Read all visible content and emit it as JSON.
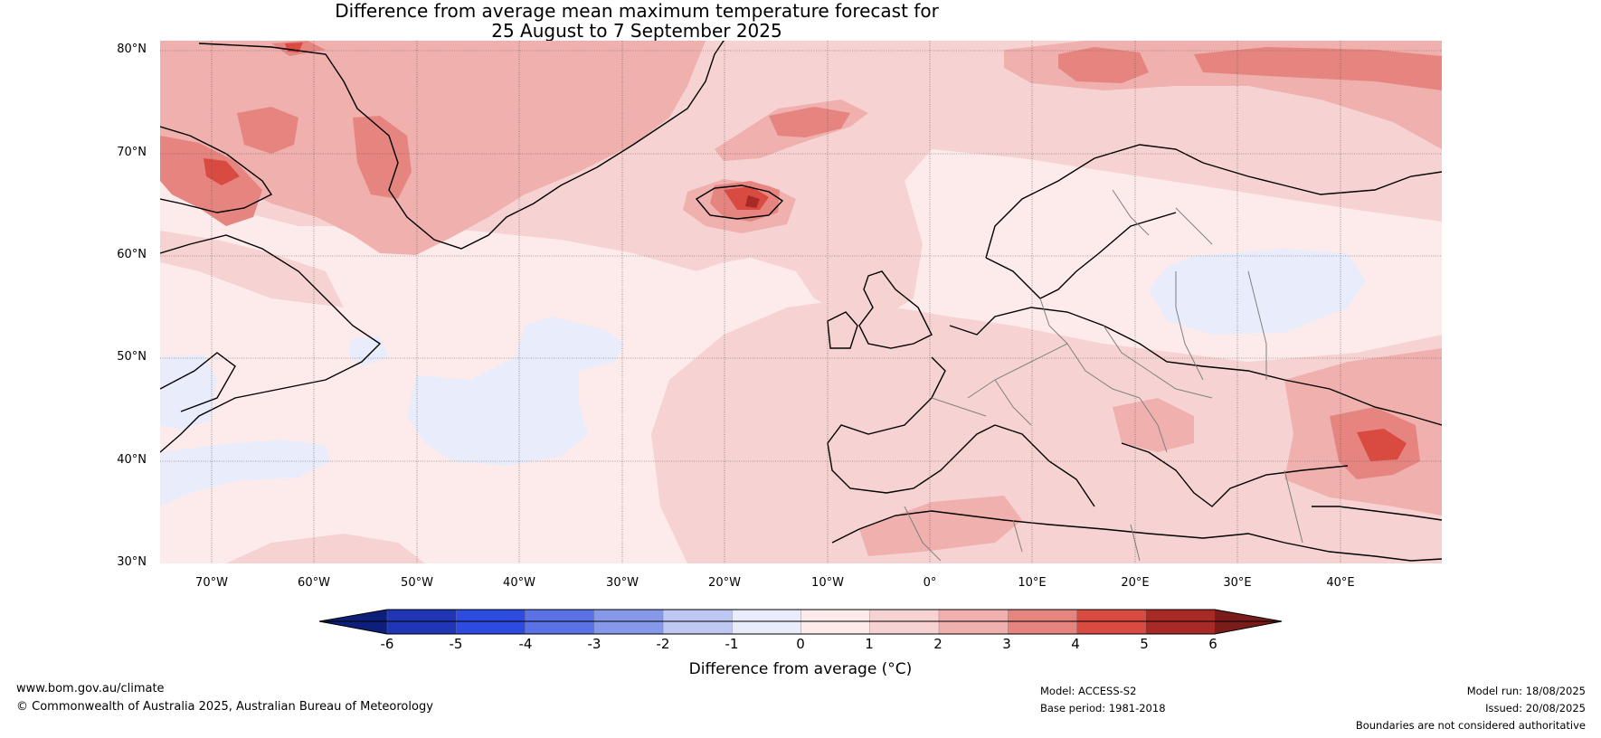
{
  "title": {
    "line1": "Difference from average mean maximum temperature forecast for",
    "line2": "25 August to 7 September 2025"
  },
  "map": {
    "latitude_labels": [
      "80°N",
      "70°N",
      "60°N",
      "50°N",
      "40°N",
      "30°N"
    ],
    "longitude_labels": [
      "70°W",
      "60°W",
      "50°W",
      "40°W",
      "30°W",
      "20°W",
      "10°W",
      "0°",
      "10°E",
      "20°E",
      "30°E",
      "40°E"
    ],
    "lat_range": [
      30,
      80
    ],
    "lon_range": [
      -75,
      50
    ],
    "gridlines": true
  },
  "colorbar": {
    "ticks": [
      "-6",
      "-5",
      "-4",
      "-3",
      "-2",
      "-1",
      "0",
      "1",
      "2",
      "3",
      "4",
      "5",
      "6"
    ],
    "colors": [
      "#0d1f7a",
      "#2036b5",
      "#2d4be0",
      "#5a72e6",
      "#8598ea",
      "#bfc8f2",
      "#e8ecfb",
      "#fcebea",
      "#f6d3d2",
      "#efb0ae",
      "#e68580",
      "#d94a41",
      "#a72a26",
      "#7a1c1a"
    ],
    "label": "Difference from average (°C)"
  },
  "footer": {
    "website": "www.bom.gov.au/climate",
    "copyright": "© Commonwealth of Australia 2025, Australian Bureau of Meteorology",
    "model": "Model: ACCESS-S2",
    "base_period": "Base period: 1981-2018",
    "model_run": "Model run: 18/08/2025",
    "issued": "Issued: 20/08/2025",
    "disclaimer": "Boundaries are not considered authoritative"
  }
}
